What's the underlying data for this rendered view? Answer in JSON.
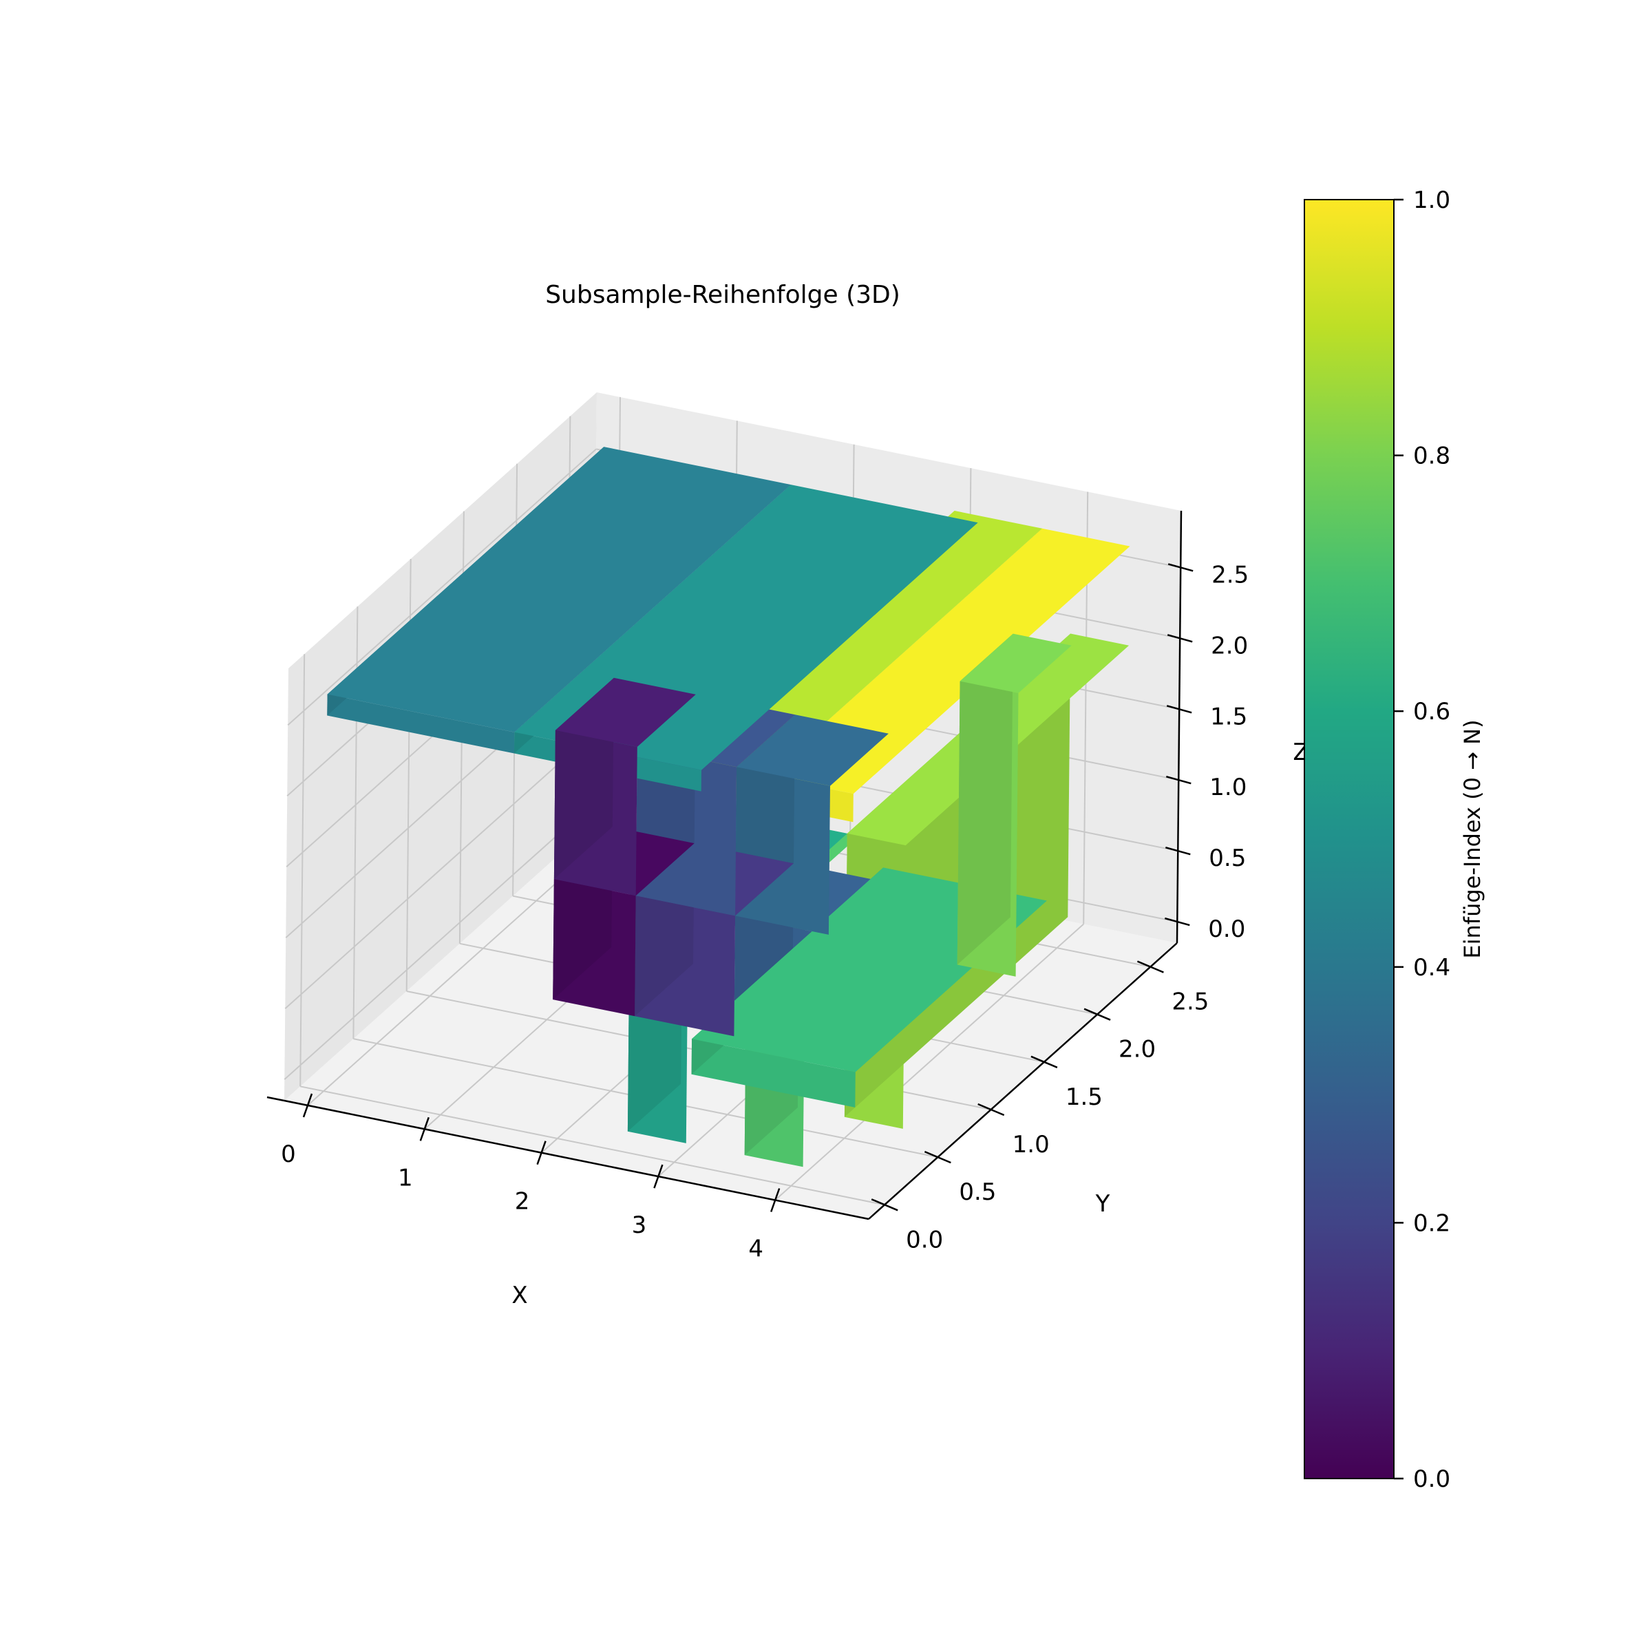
{
  "chart_data": {
    "type": "scatter",
    "title": "Subsample-Reihenfolge (3D)",
    "xlabel": "X",
    "ylabel": "Y",
    "zlabel": "Z",
    "x_ticks": [
      "0",
      "1",
      "2",
      "3",
      "4"
    ],
    "y_ticks": [
      "0.0",
      "0.5",
      "1.0",
      "1.5",
      "2.0",
      "2.5"
    ],
    "z_ticks": [
      "0.0",
      "0.5",
      "1.0",
      "1.5",
      "2.0",
      "2.5"
    ],
    "xlim": [
      -0.2,
      4.8
    ],
    "ylim": [
      -0.15,
      2.75
    ],
    "zlim": [
      -0.15,
      2.9
    ],
    "colormap": "viridis",
    "colorbar": {
      "label": "Einfüge-Index (0 → N)",
      "range": [
        0.0,
        1.0
      ],
      "ticks": [
        "0.0",
        "0.2",
        "0.4",
        "0.6",
        "0.8",
        "1.0"
      ]
    },
    "grid": true,
    "pane_color": "#f2f2f2",
    "grid_color": "#c8c8c8",
    "blocks": [
      {
        "name": "wall-left-low",
        "x": [
          1.05,
          1.75
        ],
        "y": [
          1.0,
          1.55
        ],
        "z": [
          0.0,
          0.85
        ],
        "index": 0.02
      },
      {
        "name": "wall-left-high",
        "x": [
          1.05,
          1.75
        ],
        "y": [
          1.0,
          1.55
        ],
        "z": [
          0.85,
          1.9
        ],
        "index": 0.08
      },
      {
        "name": "wall-mid-low",
        "x": [
          1.75,
          2.6
        ],
        "y": [
          1.0,
          1.55
        ],
        "z": [
          0.0,
          0.85
        ],
        "index": 0.16
      },
      {
        "name": "wall-mid-high",
        "x": [
          1.75,
          2.6
        ],
        "y": [
          1.0,
          1.55
        ],
        "z": [
          0.85,
          1.9
        ],
        "index": 0.26
      },
      {
        "name": "wall-right-low",
        "x": [
          2.6,
          3.4
        ],
        "y": [
          1.0,
          1.55
        ],
        "z": [
          0.0,
          0.85
        ],
        "index": 0.3
      },
      {
        "name": "wall-right-high",
        "x": [
          2.6,
          3.4
        ],
        "y": [
          1.0,
          1.55
        ],
        "z": [
          0.85,
          1.9
        ],
        "index": 0.34
      },
      {
        "name": "roof-left",
        "x": [
          0.0,
          1.6
        ],
        "y": [
          0.0,
          2.6
        ],
        "z": [
          2.5,
          2.65
        ],
        "index": 0.42
      },
      {
        "name": "roof-mid",
        "x": [
          1.6,
          3.2
        ],
        "y": [
          0.0,
          2.6
        ],
        "z": [
          2.5,
          2.65
        ],
        "index": 0.5
      },
      {
        "name": "floor-slab",
        "x": [
          2.6,
          4.0
        ],
        "y": [
          0.6,
          2.4
        ],
        "z": [
          0.0,
          0.25
        ],
        "index": 0.66
      },
      {
        "name": "frame-front-left",
        "x": [
          2.6,
          3.1
        ],
        "y": [
          0.0,
          0.5
        ],
        "z": [
          0.0,
          2.0
        ],
        "index": 0.56
      },
      {
        "name": "frame-front-beam",
        "x": [
          2.6,
          4.0
        ],
        "y": [
          0.0,
          0.5
        ],
        "z": [
          1.6,
          2.0
        ],
        "index": 0.6
      },
      {
        "name": "frame-front-right",
        "x": [
          3.6,
          4.1
        ],
        "y": [
          0.0,
          0.5
        ],
        "z": [
          0.0,
          2.0
        ],
        "index": 0.72
      },
      {
        "name": "frame-back-left",
        "x": [
          3.6,
          4.1
        ],
        "y": [
          2.0,
          2.5
        ],
        "z": [
          0.0,
          2.0
        ],
        "index": 0.8
      },
      {
        "name": "frame-back-right",
        "x": [
          4.0,
          4.5
        ],
        "y": [
          0.5,
          2.6
        ],
        "z": [
          0.0,
          2.0
        ],
        "index": 0.84
      },
      {
        "name": "roof-right-a",
        "x": [
          3.0,
          3.75
        ],
        "y": [
          0.0,
          2.6
        ],
        "z": [
          2.5,
          2.7
        ],
        "index": 0.88
      },
      {
        "name": "roof-right-b",
        "x": [
          3.75,
          4.5
        ],
        "y": [
          0.0,
          2.6
        ],
        "z": [
          2.5,
          2.7
        ],
        "index": 0.97
      }
    ]
  }
}
